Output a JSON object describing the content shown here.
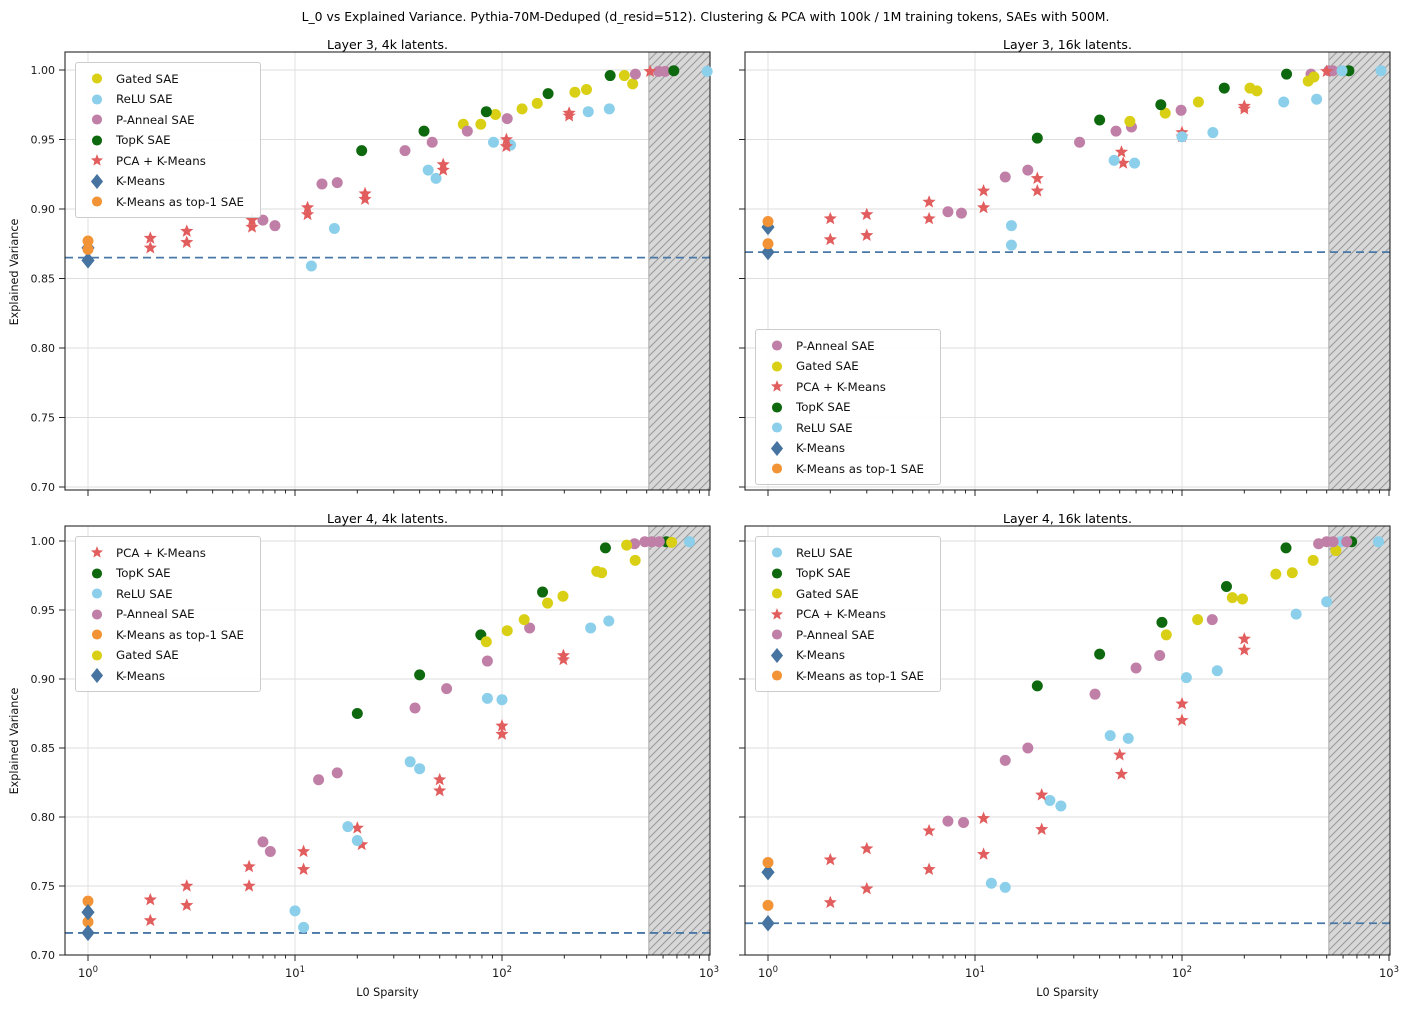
{
  "suptitle": "L_0 vs Explained Variance. Pythia-70M-Deduped (d_resid=512). Clustering & PCA with 100k / 1M training tokens, SAEs with 500M.",
  "xlabel": "L0 Sparsity",
  "ylabel": "Explained Variance",
  "colors": {
    "dashed_line": "#4878a8",
    "hatch_fill": "#d8d8d8",
    "hatch_line": "#9b9b9b",
    "hatch_edge": "#ababab",
    "grid": "#dedede",
    "spine": "#262626",
    "tick_label": "#1a1a1a"
  },
  "series_styles": {
    "Gated SAE": {
      "color": "#d9d016",
      "marker": "circle"
    },
    "ReLU SAE": {
      "color": "#8bcfeb",
      "marker": "circle"
    },
    "P-Anneal SAE": {
      "color": "#c07fa6",
      "marker": "circle"
    },
    "TopK SAE": {
      "color": "#0e690e",
      "marker": "circle"
    },
    "PCA + K-Means": {
      "color": "#e25d5d",
      "marker": "star"
    },
    "K-Means": {
      "color": "#4673a0",
      "marker": "diamond"
    },
    "K-Means as top-1 SAE": {
      "color": "#f29435",
      "marker": "circle"
    }
  },
  "chart_data": {
    "type": "scatter",
    "x_scale": "log",
    "x_range": [
      1,
      1000
    ],
    "y_range": [
      0.7,
      1.005
    ],
    "grid": true,
    "x_ticks": [
      {
        "text": "10",
        "sup": "0",
        "value": 1
      },
      {
        "text": "10",
        "sup": "1",
        "value": 10
      },
      {
        "text": "10",
        "sup": "2",
        "value": 100
      },
      {
        "text": "10",
        "sup": "3",
        "value": 1000
      }
    ],
    "y_ticks": [
      {
        "label": "1.00",
        "value": 1.0
      },
      {
        "label": "0.95",
        "value": 0.95
      },
      {
        "label": "0.90",
        "value": 0.9
      },
      {
        "label": "0.85",
        "value": 0.85
      },
      {
        "label": "0.80",
        "value": 0.8
      },
      {
        "label": "0.75",
        "value": 0.75
      },
      {
        "label": "0.70",
        "value": 0.7
      }
    ],
    "hatch_region": {
      "x_start": 512,
      "x_end": 1000
    },
    "subplots": [
      {
        "id": "layer3-4k",
        "title": "Layer 3, 4k latents.",
        "dashed_y": 0.865,
        "legend": [
          "Gated SAE",
          "ReLU SAE",
          "P-Anneal SAE",
          "TopK SAE",
          "PCA + K-Means",
          "K-Means",
          "K-Means as top-1 SAE"
        ],
        "series": {
          "Gated SAE": [
            [
              65,
              0.961
            ],
            [
              79,
              0.961
            ],
            [
              93,
              0.968
            ],
            [
              125,
              0.972
            ],
            [
              148,
              0.976
            ],
            [
              225,
              0.984
            ],
            [
              256,
              0.986
            ],
            [
              390,
              0.996
            ],
            [
              428,
              0.99
            ]
          ],
          "ReLU SAE": [
            [
              12,
              0.859
            ],
            [
              15.5,
              0.886
            ],
            [
              44,
              0.928
            ],
            [
              48,
              0.922
            ],
            [
              91,
              0.948
            ],
            [
              110,
              0.946
            ],
            [
              261,
              0.97
            ],
            [
              330,
              0.972
            ],
            [
              980,
              0.999
            ]
          ],
          "P-Anneal SAE": [
            [
              7,
              0.892
            ],
            [
              8,
              0.888
            ],
            [
              13.5,
              0.918
            ],
            [
              16,
              0.919
            ],
            [
              34,
              0.942
            ],
            [
              46,
              0.948
            ],
            [
              68,
              0.956
            ],
            [
              106,
              0.965
            ],
            [
              441,
              0.997
            ],
            [
              571,
              0.999
            ],
            [
              614,
              0.999
            ]
          ],
          "TopK SAE": [
            [
              21,
              0.942
            ],
            [
              42,
              0.956
            ],
            [
              84,
              0.97
            ],
            [
              167,
              0.983
            ],
            [
              333,
              0.996
            ],
            [
              676,
              0.9995
            ]
          ],
          "PCA + K-Means": [
            [
              2,
              0.879
            ],
            [
              2,
              0.872
            ],
            [
              3,
              0.884
            ],
            [
              3,
              0.876
            ],
            [
              6.2,
              0.892
            ],
            [
              6.2,
              0.887
            ],
            [
              11.5,
              0.901
            ],
            [
              11.5,
              0.896
            ],
            [
              21.8,
              0.911
            ],
            [
              21.8,
              0.907
            ],
            [
              52,
              0.932
            ],
            [
              52,
              0.928
            ],
            [
              105,
              0.95
            ],
            [
              105,
              0.945
            ],
            [
              211,
              0.969
            ],
            [
              211,
              0.967
            ],
            [
              519,
              0.999
            ]
          ],
          "K-Means": [
            [
              1,
              0.872
            ],
            [
              1,
              0.863
            ]
          ],
          "K-Means as top-1 SAE": [
            [
              1,
              0.877
            ],
            [
              1,
              0.871
            ]
          ]
        }
      },
      {
        "id": "layer3-16k",
        "title": "Layer 3, 16k latents.",
        "dashed_y": 0.869,
        "legend": [
          "P-Anneal SAE",
          "Gated SAE",
          "PCA + K-Means",
          "TopK SAE",
          "ReLU SAE",
          "K-Means",
          "K-Means as top-1 SAE"
        ],
        "series": {
          "P-Anneal SAE": [
            [
              7.4,
              0.898
            ],
            [
              8.6,
              0.897
            ],
            [
              14,
              0.923
            ],
            [
              18,
              0.928
            ],
            [
              32,
              0.948
            ],
            [
              48,
              0.956
            ],
            [
              57,
              0.959
            ],
            [
              99,
              0.971
            ],
            [
              420,
              0.997
            ],
            [
              512,
              0.9995
            ],
            [
              535,
              0.9995
            ]
          ],
          "Gated SAE": [
            [
              56,
              0.963
            ],
            [
              83,
              0.969
            ],
            [
              120,
              0.977
            ],
            [
              213,
              0.987
            ],
            [
              230,
              0.985
            ],
            [
              407,
              0.992
            ],
            [
              434,
              0.995
            ]
          ],
          "PCA + K-Means": [
            [
              2,
              0.893
            ],
            [
              2,
              0.878
            ],
            [
              3,
              0.896
            ],
            [
              3,
              0.881
            ],
            [
              6,
              0.905
            ],
            [
              6,
              0.893
            ],
            [
              11,
              0.913
            ],
            [
              11,
              0.901
            ],
            [
              20,
              0.922
            ],
            [
              20,
              0.913
            ],
            [
              51,
              0.941
            ],
            [
              52,
              0.933
            ],
            [
              100,
              0.955
            ],
            [
              100,
              0.952
            ],
            [
              200,
              0.974
            ],
            [
              200,
              0.972
            ],
            [
              500,
              0.999
            ]
          ],
          "TopK SAE": [
            [
              20,
              0.951
            ],
            [
              40,
              0.964
            ],
            [
              79,
              0.975
            ],
            [
              160,
              0.987
            ],
            [
              320,
              0.997
            ],
            [
              640,
              0.9995
            ]
          ],
          "ReLU SAE": [
            [
              15,
              0.888
            ],
            [
              15,
              0.874
            ],
            [
              47,
              0.935
            ],
            [
              59,
              0.933
            ],
            [
              100,
              0.952
            ],
            [
              141,
              0.955
            ],
            [
              310,
              0.977
            ],
            [
              447,
              0.979
            ],
            [
              593,
              0.9995
            ],
            [
              915,
              0.9995
            ]
          ],
          "K-Means": [
            [
              1,
              0.887
            ],
            [
              1,
              0.869
            ]
          ],
          "K-Means as top-1 SAE": [
            [
              1,
              0.891
            ],
            [
              1,
              0.875
            ]
          ]
        }
      },
      {
        "id": "layer4-4k",
        "title": "Layer 4, 4k latents.",
        "dashed_y": 0.716,
        "legend": [
          "PCA + K-Means",
          "TopK SAE",
          "ReLU SAE",
          "P-Anneal SAE",
          "K-Means as top-1 SAE",
          "Gated SAE",
          "K-Means"
        ],
        "series": {
          "PCA + K-Means": [
            [
              2,
              0.74
            ],
            [
              2,
              0.725
            ],
            [
              3,
              0.75
            ],
            [
              3,
              0.736
            ],
            [
              6,
              0.764
            ],
            [
              6,
              0.75
            ],
            [
              11,
              0.775
            ],
            [
              11,
              0.762
            ],
            [
              20,
              0.792
            ],
            [
              21,
              0.78
            ],
            [
              50,
              0.827
            ],
            [
              50,
              0.819
            ],
            [
              100,
              0.866
            ],
            [
              100,
              0.86
            ],
            [
              198,
              0.917
            ],
            [
              198,
              0.914
            ]
          ],
          "TopK SAE": [
            [
              20,
              0.875
            ],
            [
              40,
              0.903
            ],
            [
              79,
              0.932
            ],
            [
              157,
              0.963
            ],
            [
              316,
              0.995
            ],
            [
              622,
              0.9995
            ]
          ],
          "ReLU SAE": [
            [
              10,
              0.732
            ],
            [
              11,
              0.72
            ],
            [
              18,
              0.793
            ],
            [
              20,
              0.783
            ],
            [
              36,
              0.84
            ],
            [
              40,
              0.835
            ],
            [
              85,
              0.886
            ],
            [
              100,
              0.885
            ],
            [
              268,
              0.937
            ],
            [
              328,
              0.942
            ],
            [
              805,
              0.9995
            ]
          ],
          "P-Anneal SAE": [
            [
              7,
              0.782
            ],
            [
              7.6,
              0.775
            ],
            [
              13,
              0.827
            ],
            [
              16,
              0.832
            ],
            [
              38,
              0.879
            ],
            [
              54,
              0.893
            ],
            [
              85,
              0.913
            ],
            [
              136,
              0.937
            ],
            [
              437,
              0.998
            ],
            [
              490,
              0.9995
            ],
            [
              530,
              0.9995
            ],
            [
              575,
              0.9995
            ]
          ],
          "K-Means as top-1 SAE": [
            [
              1,
              0.739
            ],
            [
              1,
              0.724
            ]
          ],
          "Gated SAE": [
            [
              84,
              0.927
            ],
            [
              106,
              0.935
            ],
            [
              128,
              0.943
            ],
            [
              166,
              0.955
            ],
            [
              197,
              0.96
            ],
            [
              287,
              0.978
            ],
            [
              303,
              0.977
            ],
            [
              400,
              0.997
            ],
            [
              440,
              0.986
            ],
            [
              660,
              0.999
            ]
          ],
          "K-Means": [
            [
              1,
              0.731
            ],
            [
              1,
              0.716
            ]
          ]
        }
      },
      {
        "id": "layer4-16k",
        "title": "Layer 4, 16k latents.",
        "dashed_y": 0.723,
        "legend": [
          "ReLU SAE",
          "TopK SAE",
          "Gated SAE",
          "PCA + K-Means",
          "P-Anneal SAE",
          "K-Means",
          "K-Means as top-1 SAE"
        ],
        "series": {
          "ReLU SAE": [
            [
              12,
              0.752
            ],
            [
              14,
              0.749
            ],
            [
              23,
              0.812
            ],
            [
              26,
              0.808
            ],
            [
              45,
              0.859
            ],
            [
              55,
              0.857
            ],
            [
              105,
              0.901
            ],
            [
              148,
              0.906
            ],
            [
              356,
              0.947
            ],
            [
              500,
              0.956
            ],
            [
              585,
              0.9995
            ],
            [
              890,
              0.9995
            ]
          ],
          "TopK SAE": [
            [
              20,
              0.895
            ],
            [
              40,
              0.918
            ],
            [
              80,
              0.941
            ],
            [
              164,
              0.967
            ],
            [
              318,
              0.995
            ],
            [
              660,
              0.9995
            ]
          ],
          "Gated SAE": [
            [
              84,
              0.932
            ],
            [
              119,
              0.943
            ],
            [
              175,
              0.959
            ],
            [
              196,
              0.958
            ],
            [
              284,
              0.976
            ],
            [
              341,
              0.977
            ],
            [
              430,
              0.986
            ],
            [
              554,
              0.993
            ]
          ],
          "PCA + K-Means": [
            [
              2,
              0.769
            ],
            [
              2,
              0.738
            ],
            [
              3,
              0.777
            ],
            [
              3,
              0.748
            ],
            [
              6,
              0.79
            ],
            [
              6,
              0.762
            ],
            [
              11,
              0.799
            ],
            [
              11,
              0.773
            ],
            [
              21,
              0.816
            ],
            [
              21,
              0.791
            ],
            [
              50,
              0.845
            ],
            [
              51,
              0.831
            ],
            [
              100,
              0.882
            ],
            [
              100,
              0.87
            ],
            [
              200,
              0.929
            ],
            [
              200,
              0.921
            ]
          ],
          "P-Anneal SAE": [
            [
              7.4,
              0.797
            ],
            [
              8.8,
              0.796
            ],
            [
              14,
              0.841
            ],
            [
              18,
              0.85
            ],
            [
              38,
              0.889
            ],
            [
              60,
              0.908
            ],
            [
              78,
              0.917
            ],
            [
              140,
              0.943
            ],
            [
              457,
              0.998
            ],
            [
              500,
              0.9995
            ],
            [
              537,
              0.9995
            ],
            [
              625,
              0.9995
            ]
          ],
          "K-Means": [
            [
              1,
              0.76
            ],
            [
              1,
              0.723
            ]
          ],
          "K-Means as top-1 SAE": [
            [
              1,
              0.767
            ],
            [
              1,
              0.736
            ]
          ]
        }
      }
    ]
  }
}
